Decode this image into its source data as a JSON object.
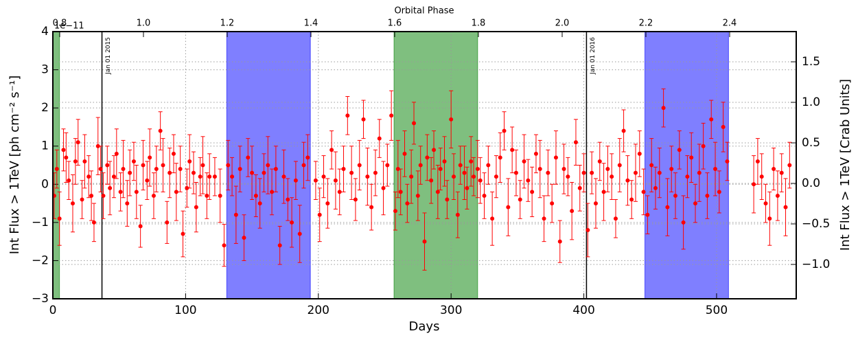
{
  "chart_data": {
    "type": "scatter",
    "x2label": "Orbital Phase",
    "xlabel": "Days",
    "ylabel": "Int Flux > 1TeV [ph cm⁻² s⁻¹]",
    "y2label": "Int Flux > 1TeV [Crab Units]",
    "offset_label": "1e−11",
    "xlim": [
      0,
      560
    ],
    "xticks": [
      0,
      100,
      200,
      300,
      400,
      500
    ],
    "x2lim": [
      0.7836,
      2.559
    ],
    "x2ticks": [
      0.8,
      {
        "value": 1.0,
        "label": "1.0"
      },
      1.2,
      1.4,
      1.6,
      1.8,
      {
        "value": 2.0,
        "label": "2.0"
      },
      2.2,
      2.4
    ],
    "ylim": [
      -3,
      4
    ],
    "yticks": [
      {
        "value": -3,
        "label": "−3"
      },
      {
        "value": -2,
        "label": "−2"
      },
      {
        "value": -1,
        "label": "−1"
      },
      0,
      1,
      2,
      3,
      4
    ],
    "y2lim": [
      -1.424,
      1.873
    ],
    "y2ticks": [
      {
        "value": -1.0,
        "label": "−1.0"
      },
      {
        "value": -0.5,
        "label": "−0.5"
      },
      {
        "value": 0.0,
        "label": "0.0"
      },
      0.5,
      {
        "value": 1.0,
        "label": "1.0"
      },
      1.5
    ],
    "grid": true,
    "spans": [
      {
        "x": [
          0,
          5
        ],
        "color": "#008000"
      },
      {
        "x": [
          131,
          194
        ],
        "color": "#0000ff"
      },
      {
        "x": [
          257,
          320
        ],
        "color": "#008000"
      },
      {
        "x": [
          446,
          509
        ],
        "color": "#0000ff"
      }
    ],
    "vlines": [
      {
        "x": 37,
        "label": "Jan 01 2015"
      },
      {
        "x": 402,
        "label": "Jan 01 2016"
      }
    ],
    "series": [
      {
        "color": "#ff0000",
        "x": [
          1,
          3,
          5,
          8,
          10,
          12,
          15,
          17,
          19,
          22,
          24,
          27,
          29,
          31,
          34,
          36,
          38,
          41,
          43,
          46,
          48,
          51,
          53,
          56,
          58,
          61,
          63,
          66,
          68,
          71,
          73,
          76,
          78,
          81,
          83,
          86,
          88,
          91,
          93,
          96,
          98,
          101,
          103,
          106,
          108,
          111,
          113,
          116,
          118,
          122,
          126,
          129,
          132,
          135,
          138,
          141,
          144,
          147,
          150,
          153,
          156,
          159,
          162,
          165,
          168,
          171,
          174,
          177,
          180,
          183,
          186,
          189,
          192,
          198,
          201,
          204,
          207,
          210,
          213,
          216,
          219,
          222,
          225,
          228,
          231,
          234,
          237,
          240,
          243,
          246,
          249,
          252,
          255,
          258,
          260,
          262,
          265,
          267,
          270,
          272,
          275,
          277,
          280,
          282,
          285,
          287,
          290,
          292,
          295,
          297,
          300,
          302,
          305,
          307,
          310,
          312,
          315,
          317,
          320,
          322,
          325,
          328,
          331,
          334,
          337,
          340,
          343,
          346,
          349,
          352,
          355,
          358,
          361,
          364,
          367,
          370,
          373,
          376,
          379,
          382,
          385,
          388,
          391,
          394,
          397,
          400,
          403,
          406,
          409,
          412,
          415,
          418,
          421,
          424,
          427,
          430,
          433,
          436,
          439,
          442,
          445,
          448,
          451,
          454,
          457,
          460,
          463,
          466,
          469,
          472,
          475,
          478,
          481,
          484,
          487,
          490,
          493,
          496,
          499,
          502,
          505,
          508,
          528,
          531,
          534,
          537,
          540,
          543,
          546,
          549,
          552,
          555
        ],
        "values": [
          -0.3,
          0.4,
          -0.9,
          0.9,
          0.7,
          0.1,
          -0.5,
          0.6,
          1.1,
          -0.4,
          0.6,
          0.2,
          -0.3,
          -1.0,
          1.0,
          0.4,
          -0.3,
          0.5,
          -0.1,
          0.2,
          0.8,
          -0.2,
          0.4,
          -0.5,
          0.3,
          0.6,
          -0.2,
          -1.1,
          0.5,
          0.1,
          0.7,
          -0.3,
          0.4,
          1.4,
          0.5,
          -1.0,
          0.3,
          0.8,
          -0.2,
          0.4,
          -1.3,
          -0.1,
          0.6,
          0.3,
          -0.6,
          0.2,
          0.5,
          -0.3,
          0.2,
          0.2,
          -0.3,
          -1.6,
          0.5,
          0.2,
          -0.8,
          0.4,
          -1.4,
          0.7,
          0.3,
          -0.3,
          -0.5,
          0.3,
          0.5,
          -0.2,
          0.4,
          -1.6,
          0.2,
          -0.4,
          -1.0,
          0.1,
          -1.3,
          0.5,
          0.7,
          0.1,
          -0.8,
          0.2,
          -0.5,
          0.9,
          0.1,
          -0.2,
          0.4,
          1.8,
          0.3,
          -0.4,
          0.5,
          1.7,
          0.2,
          -0.6,
          0.3,
          1.2,
          -0.1,
          0.5,
          1.8,
          -0.7,
          0.4,
          -0.2,
          0.8,
          -0.5,
          0.2,
          1.6,
          -0.3,
          0.5,
          -1.5,
          0.7,
          0.1,
          0.9,
          -0.2,
          0.4,
          0.6,
          -0.4,
          1.7,
          0.2,
          -0.8,
          0.5,
          0.3,
          -0.1,
          0.6,
          0.2,
          0.4,
          0.1,
          -0.3,
          0.5,
          -0.9,
          0.2,
          0.7,
          1.4,
          -0.6,
          0.9,
          0.3,
          -0.4,
          0.6,
          0.1,
          -0.2,
          0.8,
          0.4,
          -0.9,
          0.3,
          -0.5,
          0.7,
          -1.5,
          0.4,
          0.2,
          -0.7,
          1.1,
          -0.1,
          0.3,
          -1.2,
          0.3,
          -0.5,
          0.6,
          -0.2,
          0.4,
          0.2,
          -0.9,
          0.5,
          1.4,
          0.1,
          -0.4,
          0.3,
          0.8,
          -0.2,
          -0.8,
          0.5,
          -0.1,
          0.3,
          2.0,
          -0.6,
          0.4,
          -0.3,
          0.9,
          -1.0,
          0.2,
          0.7,
          -0.5,
          0.3,
          1.0,
          -0.3,
          1.7,
          0.4,
          -0.2,
          1.5,
          0.6,
          0.0,
          0.6,
          0.2,
          -0.5,
          -0.9,
          0.4,
          -0.3,
          0.3,
          -0.6,
          0.5
        ],
        "errors": [
          0.6,
          0.5,
          0.7,
          0.55,
          0.65,
          0.5,
          0.75,
          0.6,
          0.6,
          0.5,
          0.7,
          0.55,
          0.65,
          0.5,
          0.75,
          0.6,
          0.6,
          0.5,
          0.7,
          0.55,
          0.65,
          0.5,
          0.75,
          0.6,
          0.6,
          0.5,
          0.7,
          0.55,
          0.65,
          0.5,
          0.75,
          0.6,
          0.6,
          0.5,
          0.7,
          0.55,
          0.65,
          0.5,
          0.75,
          0.6,
          0.6,
          0.5,
          0.7,
          0.55,
          0.65,
          0.5,
          0.75,
          0.6,
          0.6,
          0.5,
          0.7,
          0.55,
          0.65,
          0.5,
          0.75,
          0.6,
          0.6,
          0.5,
          0.7,
          0.55,
          0.65,
          0.5,
          0.75,
          0.6,
          0.6,
          0.5,
          0.7,
          0.55,
          0.65,
          0.5,
          0.75,
          0.6,
          0.6,
          0.5,
          0.7,
          0.55,
          0.65,
          0.5,
          0.75,
          0.6,
          0.6,
          0.5,
          0.7,
          0.55,
          0.65,
          0.5,
          0.75,
          0.6,
          0.6,
          0.5,
          0.7,
          0.55,
          0.65,
          0.5,
          0.75,
          0.6,
          0.6,
          0.5,
          0.7,
          0.55,
          0.65,
          0.5,
          0.75,
          0.6,
          0.6,
          0.5,
          0.7,
          0.55,
          0.65,
          0.5,
          0.75,
          0.6,
          0.6,
          0.5,
          0.7,
          0.55,
          0.65,
          0.5,
          0.75,
          0.6,
          0.6,
          0.5,
          0.7,
          0.55,
          0.65,
          0.5,
          0.75,
          0.6,
          0.6,
          0.5,
          0.7,
          0.55,
          0.65,
          0.5,
          0.75,
          0.6,
          0.6,
          0.5,
          0.7,
          0.55,
          0.65,
          0.5,
          0.75,
          0.6,
          0.6,
          0.5,
          0.7,
          0.55,
          0.65,
          0.5,
          0.75,
          0.6,
          0.6,
          0.5,
          0.7,
          0.55,
          0.65,
          0.5,
          0.75,
          0.6,
          0.6,
          0.5,
          0.7,
          0.55,
          0.65,
          0.5,
          0.75,
          0.6,
          0.6,
          0.5,
          0.7,
          0.55,
          0.65,
          0.5,
          0.75,
          0.6,
          0.6,
          0.5,
          0.7,
          0.55,
          0.65,
          0.5,
          0.75,
          0.6,
          0.6,
          0.5,
          0.7,
          0.55,
          0.65,
          0.5,
          0.75,
          0.6
        ]
      }
    ]
  }
}
